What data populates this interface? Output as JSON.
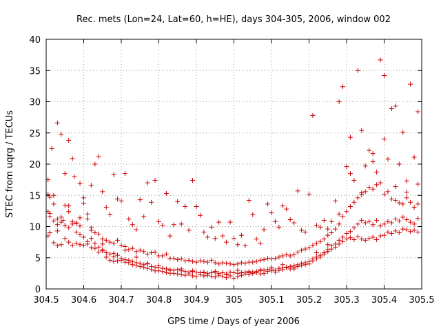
{
  "chart_data": {
    "type": "scatter",
    "title": "Rec. mets (Lon=24, Lat=60, h=HE), days 304-305, 2006, window 002",
    "xlabel": "GPS time / Days of year 2006",
    "ylabel": "STEC from uqrg / TECUs",
    "xlim": [
      304.5,
      305.5
    ],
    "ylim": [
      0,
      40
    ],
    "xticks": [
      "304.5",
      "304.6",
      "304.7",
      "304.8",
      "304.9",
      "305",
      "305.1",
      "305.2",
      "305.3",
      "305.4",
      "305.5"
    ],
    "yticks": [
      "0",
      "5",
      "10",
      "15",
      "20",
      "25",
      "30",
      "35",
      "40"
    ],
    "grid": true,
    "marker": "plus",
    "color": "#cc0000",
    "series": [
      {
        "x": [
          304.505,
          304.51,
          304.515,
          304.52,
          304.53,
          304.54,
          304.545,
          304.55,
          304.56,
          304.57,
          304.575,
          304.58,
          304.59,
          304.6,
          304.61,
          304.62,
          304.63,
          304.64,
          304.65,
          304.66,
          304.67,
          304.68,
          304.69,
          304.7,
          304.71,
          304.72,
          304.73,
          304.74,
          304.75,
          304.76,
          304.77,
          304.78,
          304.79,
          304.8,
          304.81,
          304.82,
          304.83,
          304.84,
          304.85,
          304.86,
          304.87,
          304.88,
          304.89,
          304.9,
          304.91,
          304.92,
          304.93,
          304.94,
          304.95,
          304.96,
          304.97,
          304.98,
          304.99,
          305.0,
          305.01,
          305.02,
          305.03,
          305.04,
          305.05,
          305.06,
          305.07,
          305.08,
          305.09,
          305.1,
          305.11,
          305.12,
          305.13,
          305.14,
          305.15,
          305.16,
          305.17,
          305.18,
          305.19,
          305.2,
          305.21,
          305.22,
          305.23,
          305.24,
          305.25,
          305.26,
          305.27,
          305.28,
          305.29,
          305.3,
          305.31,
          305.32,
          305.33,
          305.34,
          305.35,
          305.36,
          305.37,
          305.38,
          305.39,
          305.4,
          305.41,
          305.42,
          305.43,
          305.44,
          305.45,
          305.46,
          305.47,
          305.48,
          305.49
        ],
        "y": [
          17.5,
          12.1,
          22.5,
          15.0,
          26.6,
          24.8,
          11.0,
          18.5,
          23.8,
          20.9,
          18.0,
          10.5,
          16.9,
          14.6,
          12.0,
          16.6,
          20.0,
          21.2,
          15.6,
          13.1,
          11.9,
          18.3,
          14.4,
          14.1,
          18.5,
          11.2,
          10.3,
          9.5,
          14.3,
          11.6,
          17.0,
          13.9,
          17.4,
          10.8,
          10.2,
          15.3,
          8.5,
          10.3,
          14.0,
          10.4,
          13.2,
          9.4,
          17.4,
          13.2,
          11.8,
          9.1,
          8.3,
          9.9,
          8.1,
          10.7,
          8.5,
          7.5,
          10.7,
          8.1,
          7.1,
          8.6,
          6.9,
          14.2,
          11.9,
          8.0,
          7.3,
          9.5,
          13.6,
          12.2,
          10.8,
          9.9,
          13.3,
          12.8,
          11.1,
          10.6,
          15.7,
          9.4,
          9.1,
          15.2,
          27.8,
          10.2,
          9.9,
          11.0,
          9.6,
          10.8,
          14.1,
          30.0,
          32.4,
          19.6,
          24.3,
          17.4,
          35.0,
          25.4,
          19.7,
          22.2,
          20.4,
          18.7,
          36.7,
          34.2,
          20.8,
          28.9,
          29.3,
          20.0,
          25.1,
          15.5,
          32.8,
          21.1,
          28.4
        ]
      },
      {
        "x": [
          304.505,
          304.51,
          304.52,
          304.53,
          304.54,
          304.55,
          304.56,
          304.57,
          304.58,
          304.59,
          304.6,
          304.61,
          304.62,
          304.63,
          304.64,
          304.65,
          304.66,
          304.67,
          304.68,
          304.69,
          304.7,
          304.71,
          304.72,
          304.73,
          304.74,
          304.75,
          304.76,
          304.77,
          304.78,
          304.79,
          304.8,
          304.81,
          304.82,
          304.83,
          304.84,
          304.85,
          304.86,
          304.87,
          304.88,
          304.89,
          304.9,
          304.91,
          304.92,
          304.93,
          304.94,
          304.95,
          304.96,
          304.97,
          304.98,
          304.99,
          305.0,
          305.01,
          305.02,
          305.03,
          305.04,
          305.05,
          305.06,
          305.07,
          305.08,
          305.09,
          305.1,
          305.11,
          305.12,
          305.13,
          305.14,
          305.15,
          305.16,
          305.17,
          305.18,
          305.19,
          305.2,
          305.21,
          305.22,
          305.23,
          305.24,
          305.25,
          305.26,
          305.27,
          305.28,
          305.29,
          305.3,
          305.31,
          305.32,
          305.33,
          305.34,
          305.35,
          305.36,
          305.37,
          305.38,
          305.39,
          305.4,
          305.41,
          305.42,
          305.43,
          305.44,
          305.45,
          305.46,
          305.47,
          305.48,
          305.49
        ],
        "y": [
          15.2,
          14.7,
          13.6,
          11.2,
          10.7,
          13.4,
          12.4,
          10.8,
          10.6,
          10.1,
          13.7,
          11.2,
          9.8,
          9.0,
          8.8,
          8.0,
          7.8,
          7.5,
          7.3,
          7.8,
          7.0,
          6.8,
          6.3,
          6.5,
          6.0,
          6.2,
          6.0,
          5.6,
          5.8,
          5.9,
          5.3,
          5.3,
          5.6,
          4.9,
          4.9,
          4.7,
          4.8,
          4.5,
          4.6,
          4.4,
          4.3,
          4.5,
          4.4,
          4.3,
          4.6,
          4.2,
          4.0,
          4.2,
          4.1,
          4.0,
          3.9,
          4.0,
          4.2,
          4.1,
          4.3,
          4.3,
          4.4,
          4.6,
          4.7,
          4.9,
          4.8,
          4.9,
          5.1,
          5.3,
          5.5,
          5.3,
          5.5,
          5.9,
          6.2,
          6.4,
          6.6,
          7.0,
          7.3,
          7.6,
          8.0,
          8.6,
          9.0,
          9.6,
          10.4,
          11.6,
          12.4,
          13.2,
          13.9,
          14.6,
          15.1,
          15.6,
          16.3,
          16.0,
          16.7,
          17.0,
          15.2,
          15.6,
          14.4,
          14.2,
          13.8,
          13.6,
          14.6,
          13.9,
          13.1,
          13.6
        ]
      },
      {
        "x": [
          304.505,
          304.51,
          304.52,
          304.53,
          304.54,
          304.55,
          304.56,
          304.57,
          304.58,
          304.59,
          304.6,
          304.61,
          304.62,
          304.63,
          304.64,
          304.65,
          304.66,
          304.67,
          304.68,
          304.69,
          304.7,
          304.71,
          304.72,
          304.73,
          304.74,
          304.75,
          304.76,
          304.77,
          304.78,
          304.79,
          304.8,
          304.81,
          304.82,
          304.83,
          304.84,
          304.85,
          304.86,
          304.87,
          304.88,
          304.89,
          304.9,
          304.91,
          304.92,
          304.93,
          304.94,
          304.95,
          304.96,
          304.97,
          304.98,
          304.99,
          305.0,
          305.01,
          305.02,
          305.03,
          305.04,
          305.05,
          305.06,
          305.07,
          305.08,
          305.09,
          305.1,
          305.11,
          305.12,
          305.13,
          305.14,
          305.15,
          305.16,
          305.17,
          305.18,
          305.19,
          305.2,
          305.21,
          305.22,
          305.23,
          305.24,
          305.25,
          305.26,
          305.27,
          305.28,
          305.29,
          305.3,
          305.31,
          305.32,
          305.33,
          305.34,
          305.35,
          305.36,
          305.37,
          305.38,
          305.39,
          305.4,
          305.41,
          305.42,
          305.43,
          305.44,
          305.45,
          305.46,
          305.47,
          305.48,
          305.49
        ],
        "y": [
          12.4,
          11.6,
          10.9,
          10.3,
          11.5,
          10.2,
          9.8,
          10.4,
          9.1,
          8.7,
          8.3,
          7.6,
          8.1,
          7.3,
          6.7,
          6.3,
          5.8,
          5.6,
          5.2,
          5.4,
          4.9,
          4.7,
          4.6,
          4.4,
          4.2,
          4.1,
          3.9,
          4.0,
          3.6,
          3.5,
          3.4,
          3.3,
          3.2,
          3.1,
          3.0,
          3.1,
          2.9,
          2.8,
          2.7,
          2.8,
          2.7,
          2.6,
          2.7,
          2.5,
          2.6,
          2.7,
          2.5,
          2.6,
          2.4,
          2.7,
          2.6,
          2.5,
          2.6,
          2.7,
          2.8,
          2.7,
          2.8,
          2.9,
          3.0,
          3.1,
          3.2,
          3.0,
          3.3,
          3.4,
          3.5,
          3.6,
          3.7,
          3.9,
          4.1,
          4.2,
          4.4,
          4.8,
          5.1,
          5.4,
          5.8,
          6.3,
          6.9,
          7.2,
          7.8,
          8.3,
          8.9,
          9.2,
          9.8,
          10.4,
          11.0,
          10.6,
          10.8,
          10.3,
          11.0,
          10.1,
          10.4,
          10.8,
          10.6,
          11.2,
          10.9,
          11.5,
          11.1,
          10.7,
          10.4,
          11.3
        ]
      },
      {
        "x": [
          304.505,
          304.51,
          304.52,
          304.53,
          304.54,
          304.55,
          304.56,
          304.57,
          304.58,
          304.59,
          304.6,
          304.61,
          304.62,
          304.63,
          304.64,
          304.65,
          304.66,
          304.67,
          304.68,
          304.69,
          304.7,
          304.71,
          304.72,
          304.73,
          304.74,
          304.75,
          304.76,
          304.77,
          304.78,
          304.79,
          304.8,
          304.81,
          304.82,
          304.83,
          304.84,
          304.85,
          304.86,
          304.87,
          304.88,
          304.89,
          304.9,
          304.91,
          304.92,
          304.93,
          304.94,
          304.95,
          304.96,
          304.97,
          304.98,
          304.99,
          305.0,
          305.01,
          305.02,
          305.03,
          305.04,
          305.05,
          305.06,
          305.07,
          305.08,
          305.09,
          305.1,
          305.11,
          305.12,
          305.13,
          305.14,
          305.15,
          305.16,
          305.17,
          305.18,
          305.19,
          305.2,
          305.21,
          305.22,
          305.23,
          305.24,
          305.25,
          305.26,
          305.27,
          305.28,
          305.29,
          305.3,
          305.31,
          305.32,
          305.33,
          305.34,
          305.35,
          305.36,
          305.37,
          305.38,
          305.39,
          305.4,
          305.41,
          305.42,
          305.43,
          305.44,
          305.45,
          305.46,
          305.47,
          305.48,
          305.49
        ],
        "y": [
          8.5,
          9.0,
          7.4,
          6.9,
          7.1,
          8.1,
          7.5,
          7.0,
          7.3,
          7.1,
          7.0,
          7.2,
          6.6,
          6.5,
          5.9,
          6.1,
          5.1,
          4.6,
          4.4,
          4.5,
          4.6,
          4.3,
          4.2,
          3.9,
          3.7,
          3.6,
          3.5,
          3.3,
          3.1,
          2.9,
          2.9,
          2.8,
          2.6,
          2.5,
          2.5,
          2.4,
          2.3,
          2.2,
          2.4,
          2.1,
          2.0,
          2.3,
          2.1,
          2.2,
          2.0,
          1.9,
          2.2,
          2.0,
          1.8,
          2.1,
          1.7,
          2.0,
          2.2,
          2.4,
          2.3,
          2.5,
          2.6,
          2.4,
          2.5,
          2.8,
          2.9,
          2.7,
          3.0,
          3.1,
          3.4,
          3.2,
          3.5,
          3.6,
          3.8,
          3.9,
          4.0,
          4.5,
          4.8,
          5.1,
          5.6,
          6.0,
          6.4,
          6.7,
          7.2,
          7.6,
          8.0,
          8.2,
          7.9,
          8.4,
          8.0,
          7.8,
          8.1,
          8.3,
          7.9,
          8.5,
          8.6,
          9.1,
          8.9,
          9.3,
          9.0,
          9.6,
          9.5,
          9.2,
          9.4,
          9.1
        ]
      },
      {
        "x": [
          304.53,
          304.56,
          304.59,
          304.62,
          304.65,
          304.68,
          304.71,
          304.74,
          304.77,
          304.8,
          304.83,
          304.86,
          304.89,
          304.92,
          304.95,
          304.98,
          305.01,
          305.04,
          305.07,
          305.1,
          305.13,
          305.16,
          305.19,
          305.22,
          305.25,
          305.28,
          305.31,
          305.34,
          305.37,
          305.4,
          305.43,
          305.46,
          305.49
        ],
        "y": [
          9.3,
          13.3,
          11.4,
          9.4,
          7.2,
          5.7,
          6.2,
          5.1,
          4.1,
          3.7,
          3.0,
          3.2,
          2.9,
          2.6,
          2.8,
          2.3,
          3.0,
          2.6,
          3.1,
          3.5,
          3.9,
          3.2,
          4.2,
          5.8,
          7.1,
          12.0,
          18.5,
          15.4,
          21.7,
          24.0,
          16.4,
          17.3,
          16.8
        ]
      }
    ]
  }
}
